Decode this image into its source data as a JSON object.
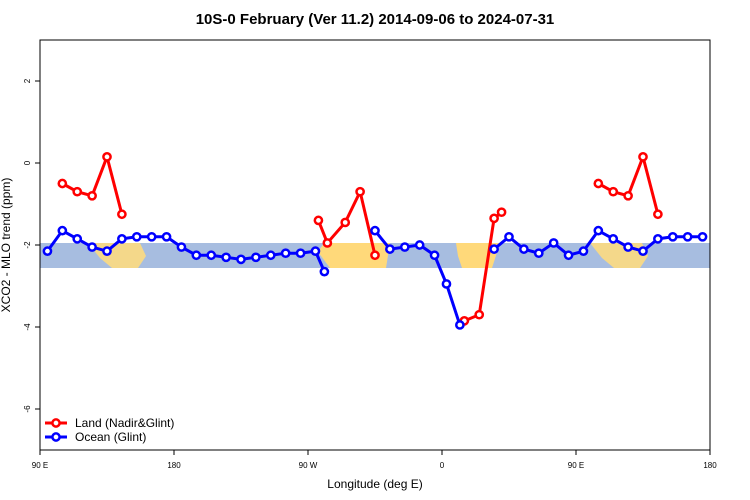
{
  "chart_data": {
    "type": "line",
    "title": "10S-0 February (Ver 11.2)   2014-09-06 to 2024-07-31",
    "x_label": "Longitude (deg E)",
    "y_label": "XCO2 - MLO trend (ppm)",
    "xlim": [
      90,
      540
    ],
    "xticks": [
      {
        "value": 90,
        "label": "90 E"
      },
      180,
      {
        "value": 270,
        "label": "90 W"
      },
      {
        "value": 360,
        "label": "0"
      },
      {
        "value": 450,
        "label": "90 E"
      },
      {
        "value": 540,
        "label": "180"
      }
    ],
    "ylim": [
      -7,
      3
    ],
    "yticks": [
      -6,
      -4,
      -2,
      0,
      2
    ],
    "legend": "bottom-left",
    "series": [
      {
        "name": "Land (Nadir&Glint)",
        "color": "#ff0000",
        "x": [
          105,
          115,
          125,
          135,
          145,
          null,
          277,
          283,
          295,
          305,
          315,
          null,
          375,
          385,
          395,
          400,
          null,
          465,
          475,
          485,
          495,
          505
        ],
        "values": [
          -0.5,
          -0.7,
          -0.8,
          0.15,
          -1.25,
          null,
          -1.4,
          -1.95,
          -1.45,
          -0.7,
          -2.25,
          null,
          -3.85,
          -3.7,
          -1.35,
          -1.2,
          null,
          -0.5,
          -0.7,
          -0.8,
          0.15,
          -1.25
        ]
      },
      {
        "name": "Ocean (Glint)",
        "color": "#0000ff",
        "x": [
          95,
          105,
          115,
          125,
          135,
          145,
          155,
          165,
          175,
          185,
          195,
          205,
          215,
          225,
          235,
          245,
          255,
          265,
          275,
          281,
          null,
          315,
          325,
          335,
          345,
          355,
          363,
          372,
          null,
          395,
          405,
          415,
          425,
          435,
          445,
          455,
          465,
          475,
          485,
          495,
          505,
          515,
          525,
          535
        ],
        "values": [
          -2.15,
          -1.65,
          -1.85,
          -2.05,
          -2.15,
          -1.85,
          -1.8,
          -1.8,
          -1.8,
          -2.05,
          -2.25,
          -2.25,
          -2.3,
          -2.35,
          -2.3,
          -2.25,
          -2.2,
          -2.2,
          -2.15,
          -2.65,
          null,
          -1.65,
          -2.1,
          -2.05,
          -2.0,
          -2.25,
          -2.95,
          -3.95,
          null,
          -2.1,
          -1.8,
          -2.1,
          -2.2,
          -1.95,
          -2.25,
          -2.15,
          -1.65,
          -1.85,
          -2.05,
          -2.15,
          -1.85,
          -1.8,
          -1.8,
          -1.8
        ]
      }
    ]
  }
}
